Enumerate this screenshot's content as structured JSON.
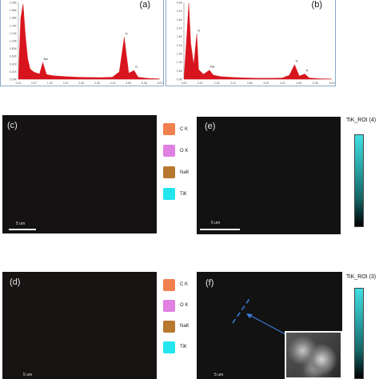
{
  "panels": {
    "a": {
      "label": "(a)"
    },
    "b": {
      "label": "(b)"
    },
    "c": {
      "label": "(c)",
      "scale": "5 um"
    },
    "d": {
      "label": "(d)",
      "scale": "5 um"
    },
    "e": {
      "label": "(e)",
      "scale": "5 um",
      "roi_title": "TiK_ROI (4)"
    },
    "f": {
      "label": "(f)",
      "scale": "5 um",
      "roi_title": "TiK_ROI (3)"
    }
  },
  "legend": [
    {
      "label": "C K",
      "color": "#f2804f"
    },
    {
      "label": "O K",
      "color": "#e080e0"
    },
    {
      "label": "NaK",
      "color": "#b87830"
    },
    {
      "label": "TiK",
      "color": "#22e6ee"
    }
  ],
  "chart_data": [
    {
      "type": "area",
      "panel": "a",
      "x": [
        0.0,
        0.1,
        0.2,
        0.3,
        0.4,
        0.5,
        0.67,
        0.9,
        1.04,
        1.2,
        1.5,
        2.0,
        2.5,
        3.0,
        3.5,
        4.0,
        4.3,
        4.51,
        4.7,
        4.93,
        5.1,
        5.5,
        6.0
      ],
      "values": [
        0,
        2100,
        2600,
        1500,
        700,
        350,
        240,
        180,
        580,
        160,
        120,
        90,
        70,
        60,
        55,
        70,
        250,
        1450,
        210,
        300,
        70,
        30,
        10
      ],
      "color": "#d8151e",
      "x_ticks": [
        "0.00",
        "0.67",
        "1.34",
        "2.01",
        "2.68",
        "3.35",
        "4.02",
        "4.69",
        "5.36",
        "6.03"
      ],
      "y_ticks": [
        "0.00K",
        "0.21K",
        "0.41K",
        "0.62K",
        "0.83K",
        "1.03K",
        "1.24K",
        "1.44K",
        "1.65K",
        "1.86K",
        "2.06K"
      ],
      "annotations": [
        {
          "text": "Na",
          "x": 1.04
        },
        {
          "text": "Ti",
          "x": 4.51
        },
        {
          "text": "Ti",
          "x": 4.93
        }
      ],
      "xlim": [
        0,
        6.03
      ],
      "ylim": [
        0,
        2650
      ]
    },
    {
      "type": "area",
      "panel": "b",
      "x": [
        0.0,
        0.1,
        0.2,
        0.28,
        0.4,
        0.525,
        0.6,
        0.8,
        1.04,
        1.2,
        1.5,
        2.0,
        2.5,
        3.0,
        3.5,
        4.0,
        4.3,
        4.51,
        4.7,
        4.93,
        5.1,
        5.5,
        6.0
      ],
      "values": [
        0,
        2300,
        4700,
        2200,
        900,
        2800,
        600,
        300,
        560,
        250,
        160,
        110,
        80,
        65,
        60,
        75,
        240,
        900,
        200,
        320,
        80,
        30,
        10
      ],
      "color": "#d8151e",
      "x_ticks": [
        "0.00",
        "0.67",
        "1.34",
        "2.01",
        "2.68",
        "3.35",
        "4.02",
        "4.69",
        "5.36",
        "6.03"
      ],
      "y_ticks": [
        "0.0K",
        "0.5K",
        "1.0K",
        "1.5K",
        "2.1K",
        "2.6K",
        "3.1K",
        "3.6K",
        "4.1K",
        "4.6K"
      ],
      "annotations": [
        {
          "text": "O",
          "x": 0.525
        },
        {
          "text": "Na",
          "x": 1.04
        },
        {
          "text": "Ti",
          "x": 4.51
        },
        {
          "text": "Ti",
          "x": 4.93
        }
      ],
      "xlim": [
        0,
        6.03
      ],
      "ylim": [
        0,
        4750
      ]
    }
  ]
}
